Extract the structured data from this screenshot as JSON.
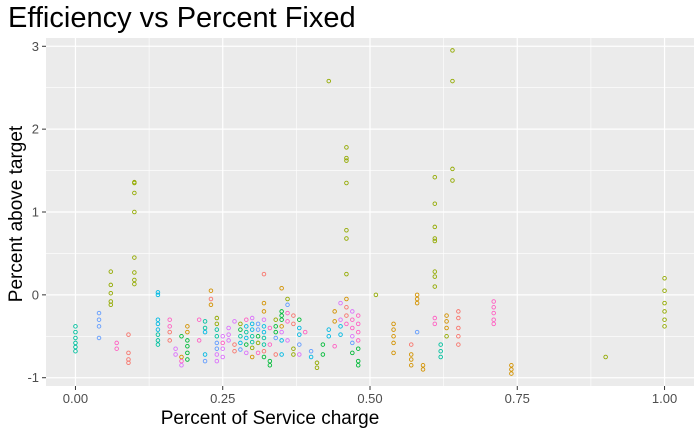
{
  "chart_data": {
    "type": "scatter",
    "title": "Efficiency vs Percent Fixed",
    "xlabel": "Percent of Service charge",
    "ylabel": "Percent above target",
    "xlim": [
      -0.05,
      1.05
    ],
    "ylim": [
      -1.1,
      3.1
    ],
    "x_ticks": [
      0.0,
      0.25,
      0.5,
      0.75,
      1.0
    ],
    "x_tick_labels": [
      "0.00",
      "0.25",
      "0.50",
      "0.75",
      "1.00"
    ],
    "y_ticks": [
      -1,
      0,
      1,
      2,
      3
    ],
    "y_tick_labels": [
      "-1",
      "0",
      "1",
      "2",
      "3"
    ],
    "grid": true,
    "legend": "none",
    "marker": "open-circle",
    "panel_background": "#ebebeb",
    "grid_color": "#ffffff",
    "palette": [
      "#f8766d",
      "#d39200",
      "#93aa00",
      "#00ba38",
      "#00c19f",
      "#00b9e3",
      "#619cff",
      "#db72fb",
      "#ff61c3"
    ],
    "points": [
      {
        "x": 0.0,
        "y": -0.38,
        "c": 4
      },
      {
        "x": 0.0,
        "y": -0.45,
        "c": 4
      },
      {
        "x": 0.0,
        "y": -0.52,
        "c": 4
      },
      {
        "x": 0.0,
        "y": -0.58,
        "c": 4
      },
      {
        "x": 0.0,
        "y": -0.63,
        "c": 4
      },
      {
        "x": 0.0,
        "y": -0.68,
        "c": 4
      },
      {
        "x": 0.04,
        "y": -0.22,
        "c": 6
      },
      {
        "x": 0.04,
        "y": -0.3,
        "c": 6
      },
      {
        "x": 0.04,
        "y": -0.38,
        "c": 6
      },
      {
        "x": 0.04,
        "y": -0.52,
        "c": 6
      },
      {
        "x": 0.06,
        "y": 0.28,
        "c": 2
      },
      {
        "x": 0.06,
        "y": 0.12,
        "c": 2
      },
      {
        "x": 0.06,
        "y": 0.02,
        "c": 2
      },
      {
        "x": 0.06,
        "y": -0.08,
        "c": 2
      },
      {
        "x": 0.06,
        "y": -0.12,
        "c": 2
      },
      {
        "x": 0.07,
        "y": -0.58,
        "c": 8
      },
      {
        "x": 0.07,
        "y": -0.65,
        "c": 8
      },
      {
        "x": 0.09,
        "y": -0.48,
        "c": 0
      },
      {
        "x": 0.09,
        "y": -0.7,
        "c": 0
      },
      {
        "x": 0.09,
        "y": -0.78,
        "c": 0
      },
      {
        "x": 0.09,
        "y": -0.82,
        "c": 0
      },
      {
        "x": 0.1,
        "y": 1.36,
        "c": 2
      },
      {
        "x": 0.1,
        "y": 1.35,
        "c": 2
      },
      {
        "x": 0.1,
        "y": 1.23,
        "c": 2
      },
      {
        "x": 0.1,
        "y": 1.0,
        "c": 2
      },
      {
        "x": 0.1,
        "y": 0.45,
        "c": 2
      },
      {
        "x": 0.1,
        "y": 0.27,
        "c": 2
      },
      {
        "x": 0.1,
        "y": 0.18,
        "c": 2
      },
      {
        "x": 0.1,
        "y": 0.13,
        "c": 2
      },
      {
        "x": 0.14,
        "y": 0.03,
        "c": 5
      },
      {
        "x": 0.14,
        "y": 0.0,
        "c": 5
      },
      {
        "x": 0.14,
        "y": -0.3,
        "c": 5
      },
      {
        "x": 0.14,
        "y": -0.35,
        "c": 5
      },
      {
        "x": 0.14,
        "y": -0.42,
        "c": 5
      },
      {
        "x": 0.14,
        "y": -0.48,
        "c": 4
      },
      {
        "x": 0.14,
        "y": -0.55,
        "c": 4
      },
      {
        "x": 0.14,
        "y": -0.6,
        "c": 4
      },
      {
        "x": 0.16,
        "y": -0.3,
        "c": 8
      },
      {
        "x": 0.16,
        "y": -0.38,
        "c": 8
      },
      {
        "x": 0.16,
        "y": -0.45,
        "c": 0
      },
      {
        "x": 0.16,
        "y": -0.55,
        "c": 0
      },
      {
        "x": 0.17,
        "y": -0.65,
        "c": 7
      },
      {
        "x": 0.17,
        "y": -0.72,
        "c": 7
      },
      {
        "x": 0.18,
        "y": -0.5,
        "c": 3
      },
      {
        "x": 0.18,
        "y": -0.75,
        "c": 1
      },
      {
        "x": 0.18,
        "y": -0.8,
        "c": 8
      },
      {
        "x": 0.18,
        "y": -0.85,
        "c": 7
      },
      {
        "x": 0.19,
        "y": -0.38,
        "c": 1
      },
      {
        "x": 0.19,
        "y": -0.45,
        "c": 1
      },
      {
        "x": 0.19,
        "y": -0.55,
        "c": 3
      },
      {
        "x": 0.19,
        "y": -0.62,
        "c": 3
      },
      {
        "x": 0.19,
        "y": -0.7,
        "c": 3
      },
      {
        "x": 0.19,
        "y": -0.78,
        "c": 3
      },
      {
        "x": 0.21,
        "y": -0.3,
        "c": 8
      },
      {
        "x": 0.21,
        "y": -0.55,
        "c": 8
      },
      {
        "x": 0.22,
        "y": -0.32,
        "c": 4
      },
      {
        "x": 0.22,
        "y": -0.4,
        "c": 4
      },
      {
        "x": 0.22,
        "y": -0.45,
        "c": 5
      },
      {
        "x": 0.22,
        "y": -0.72,
        "c": 5
      },
      {
        "x": 0.22,
        "y": -0.8,
        "c": 6
      },
      {
        "x": 0.23,
        "y": -0.05,
        "c": 0
      },
      {
        "x": 0.23,
        "y": 0.05,
        "c": 1
      },
      {
        "x": 0.23,
        "y": -0.12,
        "c": 1
      },
      {
        "x": 0.24,
        "y": -0.28,
        "c": 2
      },
      {
        "x": 0.24,
        "y": -0.35,
        "c": 2
      },
      {
        "x": 0.24,
        "y": -0.42,
        "c": 4
      },
      {
        "x": 0.24,
        "y": -0.5,
        "c": 4
      },
      {
        "x": 0.24,
        "y": -0.58,
        "c": 6
      },
      {
        "x": 0.24,
        "y": -0.65,
        "c": 6
      },
      {
        "x": 0.24,
        "y": -0.72,
        "c": 7
      },
      {
        "x": 0.24,
        "y": -0.8,
        "c": 7
      },
      {
        "x": 0.25,
        "y": -0.5,
        "c": 7
      },
      {
        "x": 0.25,
        "y": -0.58,
        "c": 8
      },
      {
        "x": 0.25,
        "y": -0.65,
        "c": 7
      },
      {
        "x": 0.25,
        "y": -0.75,
        "c": 7
      },
      {
        "x": 0.26,
        "y": -0.4,
        "c": 7
      },
      {
        "x": 0.26,
        "y": -0.48,
        "c": 7
      },
      {
        "x": 0.26,
        "y": -0.55,
        "c": 7
      },
      {
        "x": 0.27,
        "y": -0.32,
        "c": 7
      },
      {
        "x": 0.27,
        "y": -0.6,
        "c": 0
      },
      {
        "x": 0.27,
        "y": -0.68,
        "c": 0
      },
      {
        "x": 0.28,
        "y": -0.35,
        "c": 2
      },
      {
        "x": 0.28,
        "y": -0.42,
        "c": 3
      },
      {
        "x": 0.28,
        "y": -0.5,
        "c": 4
      },
      {
        "x": 0.28,
        "y": -0.58,
        "c": 5
      },
      {
        "x": 0.28,
        "y": -0.66,
        "c": 6
      },
      {
        "x": 0.29,
        "y": -0.3,
        "c": 8
      },
      {
        "x": 0.29,
        "y": -0.38,
        "c": 5
      },
      {
        "x": 0.29,
        "y": -0.45,
        "c": 4
      },
      {
        "x": 0.29,
        "y": -0.52,
        "c": 5
      },
      {
        "x": 0.29,
        "y": -0.6,
        "c": 3
      },
      {
        "x": 0.29,
        "y": -0.7,
        "c": 7
      },
      {
        "x": 0.3,
        "y": -0.28,
        "c": 7
      },
      {
        "x": 0.3,
        "y": -0.35,
        "c": 5
      },
      {
        "x": 0.3,
        "y": -0.42,
        "c": 5
      },
      {
        "x": 0.3,
        "y": -0.5,
        "c": 4
      },
      {
        "x": 0.3,
        "y": -0.57,
        "c": 4
      },
      {
        "x": 0.3,
        "y": -0.64,
        "c": 2
      },
      {
        "x": 0.3,
        "y": -0.75,
        "c": 1
      },
      {
        "x": 0.31,
        "y": -0.35,
        "c": 6
      },
      {
        "x": 0.31,
        "y": -0.42,
        "c": 6
      },
      {
        "x": 0.31,
        "y": -0.5,
        "c": 3
      },
      {
        "x": 0.31,
        "y": -0.58,
        "c": 2
      },
      {
        "x": 0.31,
        "y": -0.7,
        "c": 8
      },
      {
        "x": 0.32,
        "y": 0.25,
        "c": 0
      },
      {
        "x": 0.32,
        "y": -0.1,
        "c": 1
      },
      {
        "x": 0.32,
        "y": -0.2,
        "c": 1
      },
      {
        "x": 0.32,
        "y": -0.3,
        "c": 7
      },
      {
        "x": 0.32,
        "y": -0.38,
        "c": 5
      },
      {
        "x": 0.32,
        "y": -0.45,
        "c": 5
      },
      {
        "x": 0.32,
        "y": -0.52,
        "c": 4
      },
      {
        "x": 0.32,
        "y": -0.6,
        "c": 4
      },
      {
        "x": 0.32,
        "y": -0.68,
        "c": 0
      },
      {
        "x": 0.32,
        "y": -0.75,
        "c": 3
      },
      {
        "x": 0.33,
        "y": -0.4,
        "c": 8
      },
      {
        "x": 0.33,
        "y": -0.6,
        "c": 8
      },
      {
        "x": 0.33,
        "y": -0.8,
        "c": 3
      },
      {
        "x": 0.33,
        "y": -0.85,
        "c": 3
      },
      {
        "x": 0.34,
        "y": -0.3,
        "c": 2
      },
      {
        "x": 0.34,
        "y": -0.38,
        "c": 3
      },
      {
        "x": 0.34,
        "y": -0.45,
        "c": 3
      },
      {
        "x": 0.34,
        "y": -0.52,
        "c": 6
      },
      {
        "x": 0.34,
        "y": -0.72,
        "c": 0
      },
      {
        "x": 0.35,
        "y": 0.08,
        "c": 1
      },
      {
        "x": 0.35,
        "y": -0.2,
        "c": 3
      },
      {
        "x": 0.35,
        "y": -0.25,
        "c": 3
      },
      {
        "x": 0.35,
        "y": -0.3,
        "c": 3
      },
      {
        "x": 0.35,
        "y": -0.38,
        "c": 1
      },
      {
        "x": 0.35,
        "y": -0.45,
        "c": 7
      },
      {
        "x": 0.35,
        "y": -0.55,
        "c": 5
      },
      {
        "x": 0.35,
        "y": -0.72,
        "c": 5
      },
      {
        "x": 0.36,
        "y": -0.05,
        "c": 2
      },
      {
        "x": 0.36,
        "y": -0.12,
        "c": 6
      },
      {
        "x": 0.36,
        "y": -0.22,
        "c": 8
      },
      {
        "x": 0.36,
        "y": -0.32,
        "c": 8
      },
      {
        "x": 0.36,
        "y": -0.55,
        "c": 7
      },
      {
        "x": 0.37,
        "y": -0.25,
        "c": 0
      },
      {
        "x": 0.37,
        "y": -0.35,
        "c": 0
      },
      {
        "x": 0.37,
        "y": -0.65,
        "c": 2
      },
      {
        "x": 0.37,
        "y": -0.72,
        "c": 2
      },
      {
        "x": 0.38,
        "y": -0.3,
        "c": 3
      },
      {
        "x": 0.38,
        "y": -0.4,
        "c": 5
      },
      {
        "x": 0.38,
        "y": -0.48,
        "c": 5
      },
      {
        "x": 0.38,
        "y": -0.6,
        "c": 6
      },
      {
        "x": 0.38,
        "y": -0.72,
        "c": 7
      },
      {
        "x": 0.39,
        "y": -0.45,
        "c": 8
      },
      {
        "x": 0.4,
        "y": -0.75,
        "c": 5
      },
      {
        "x": 0.4,
        "y": -0.68,
        "c": 6
      },
      {
        "x": 0.41,
        "y": -0.82,
        "c": 2
      },
      {
        "x": 0.41,
        "y": -0.88,
        "c": 2
      },
      {
        "x": 0.42,
        "y": -0.6,
        "c": 3
      },
      {
        "x": 0.42,
        "y": -0.72,
        "c": 3
      },
      {
        "x": 0.43,
        "y": -0.42,
        "c": 5
      },
      {
        "x": 0.43,
        "y": -0.5,
        "c": 5
      },
      {
        "x": 0.43,
        "y": 2.58,
        "c": 2
      },
      {
        "x": 0.44,
        "y": -0.2,
        "c": 1
      },
      {
        "x": 0.44,
        "y": -0.32,
        "c": 1
      },
      {
        "x": 0.44,
        "y": -0.62,
        "c": 8
      },
      {
        "x": 0.45,
        "y": -0.1,
        "c": 7
      },
      {
        "x": 0.45,
        "y": -0.3,
        "c": 7
      },
      {
        "x": 0.45,
        "y": -0.38,
        "c": 5
      },
      {
        "x": 0.45,
        "y": -0.48,
        "c": 5
      },
      {
        "x": 0.46,
        "y": 1.78,
        "c": 2
      },
      {
        "x": 0.46,
        "y": 1.65,
        "c": 2
      },
      {
        "x": 0.46,
        "y": 1.62,
        "c": 2
      },
      {
        "x": 0.46,
        "y": 1.35,
        "c": 2
      },
      {
        "x": 0.46,
        "y": 0.78,
        "c": 2
      },
      {
        "x": 0.46,
        "y": 0.68,
        "c": 2
      },
      {
        "x": 0.46,
        "y": 0.25,
        "c": 2
      },
      {
        "x": 0.46,
        "y": -0.05,
        "c": 1
      },
      {
        "x": 0.46,
        "y": -0.15,
        "c": 0
      },
      {
        "x": 0.46,
        "y": -0.25,
        "c": 0
      },
      {
        "x": 0.46,
        "y": -0.35,
        "c": 8
      },
      {
        "x": 0.47,
        "y": -0.2,
        "c": 7
      },
      {
        "x": 0.47,
        "y": -0.3,
        "c": 8
      },
      {
        "x": 0.47,
        "y": -0.4,
        "c": 8
      },
      {
        "x": 0.47,
        "y": -0.5,
        "c": 7
      },
      {
        "x": 0.47,
        "y": -0.58,
        "c": 6
      },
      {
        "x": 0.47,
        "y": -0.7,
        "c": 3
      },
      {
        "x": 0.48,
        "y": -0.25,
        "c": 8
      },
      {
        "x": 0.48,
        "y": -0.35,
        "c": 8
      },
      {
        "x": 0.48,
        "y": -0.45,
        "c": 8
      },
      {
        "x": 0.48,
        "y": -0.55,
        "c": 8
      },
      {
        "x": 0.48,
        "y": -0.65,
        "c": 3
      },
      {
        "x": 0.48,
        "y": -0.8,
        "c": 3
      },
      {
        "x": 0.48,
        "y": -0.85,
        "c": 3
      },
      {
        "x": 0.51,
        "y": 0.0,
        "c": 2
      },
      {
        "x": 0.54,
        "y": -0.35,
        "c": 1
      },
      {
        "x": 0.54,
        "y": -0.42,
        "c": 1
      },
      {
        "x": 0.54,
        "y": -0.5,
        "c": 1
      },
      {
        "x": 0.54,
        "y": -0.58,
        "c": 1
      },
      {
        "x": 0.54,
        "y": -0.7,
        "c": 1
      },
      {
        "x": 0.57,
        "y": -0.6,
        "c": 0
      },
      {
        "x": 0.57,
        "y": -0.72,
        "c": 1
      },
      {
        "x": 0.57,
        "y": -0.78,
        "c": 1
      },
      {
        "x": 0.57,
        "y": -0.85,
        "c": 1
      },
      {
        "x": 0.58,
        "y": 0.0,
        "c": 1
      },
      {
        "x": 0.58,
        "y": -0.05,
        "c": 1
      },
      {
        "x": 0.58,
        "y": -0.1,
        "c": 1
      },
      {
        "x": 0.58,
        "y": -0.45,
        "c": 6
      },
      {
        "x": 0.59,
        "y": -0.85,
        "c": 1
      },
      {
        "x": 0.59,
        "y": -0.9,
        "c": 1
      },
      {
        "x": 0.61,
        "y": 1.42,
        "c": 2
      },
      {
        "x": 0.61,
        "y": 1.1,
        "c": 2
      },
      {
        "x": 0.61,
        "y": 0.82,
        "c": 2
      },
      {
        "x": 0.61,
        "y": 0.68,
        "c": 2
      },
      {
        "x": 0.61,
        "y": 0.65,
        "c": 2
      },
      {
        "x": 0.61,
        "y": 0.28,
        "c": 2
      },
      {
        "x": 0.61,
        "y": 0.22,
        "c": 2
      },
      {
        "x": 0.61,
        "y": 0.1,
        "c": 2
      },
      {
        "x": 0.61,
        "y": -0.28,
        "c": 8
      },
      {
        "x": 0.61,
        "y": -0.35,
        "c": 8
      },
      {
        "x": 0.62,
        "y": -0.6,
        "c": 4
      },
      {
        "x": 0.62,
        "y": -0.68,
        "c": 4
      },
      {
        "x": 0.62,
        "y": -0.75,
        "c": 4
      },
      {
        "x": 0.63,
        "y": -0.25,
        "c": 1
      },
      {
        "x": 0.63,
        "y": -0.32,
        "c": 1
      },
      {
        "x": 0.63,
        "y": -0.4,
        "c": 1
      },
      {
        "x": 0.63,
        "y": -0.5,
        "c": 2
      },
      {
        "x": 0.64,
        "y": 2.95,
        "c": 2
      },
      {
        "x": 0.64,
        "y": 2.58,
        "c": 2
      },
      {
        "x": 0.64,
        "y": 1.52,
        "c": 2
      },
      {
        "x": 0.64,
        "y": 1.38,
        "c": 2
      },
      {
        "x": 0.65,
        "y": -0.2,
        "c": 0
      },
      {
        "x": 0.65,
        "y": -0.28,
        "c": 0
      },
      {
        "x": 0.65,
        "y": -0.4,
        "c": 0
      },
      {
        "x": 0.65,
        "y": -0.5,
        "c": 0
      },
      {
        "x": 0.65,
        "y": -0.6,
        "c": 0
      },
      {
        "x": 0.71,
        "y": -0.08,
        "c": 8
      },
      {
        "x": 0.71,
        "y": -0.15,
        "c": 8
      },
      {
        "x": 0.71,
        "y": -0.22,
        "c": 8
      },
      {
        "x": 0.71,
        "y": -0.3,
        "c": 8
      },
      {
        "x": 0.71,
        "y": -0.35,
        "c": 8
      },
      {
        "x": 0.74,
        "y": -0.85,
        "c": 1
      },
      {
        "x": 0.74,
        "y": -0.9,
        "c": 1
      },
      {
        "x": 0.74,
        "y": -0.95,
        "c": 1
      },
      {
        "x": 0.9,
        "y": -0.75,
        "c": 2
      },
      {
        "x": 1.0,
        "y": 0.2,
        "c": 2
      },
      {
        "x": 1.0,
        "y": 0.05,
        "c": 2
      },
      {
        "x": 1.0,
        "y": -0.1,
        "c": 2
      },
      {
        "x": 1.0,
        "y": -0.2,
        "c": 2
      },
      {
        "x": 1.0,
        "y": -0.3,
        "c": 2
      },
      {
        "x": 1.0,
        "y": -0.38,
        "c": 2
      }
    ]
  }
}
